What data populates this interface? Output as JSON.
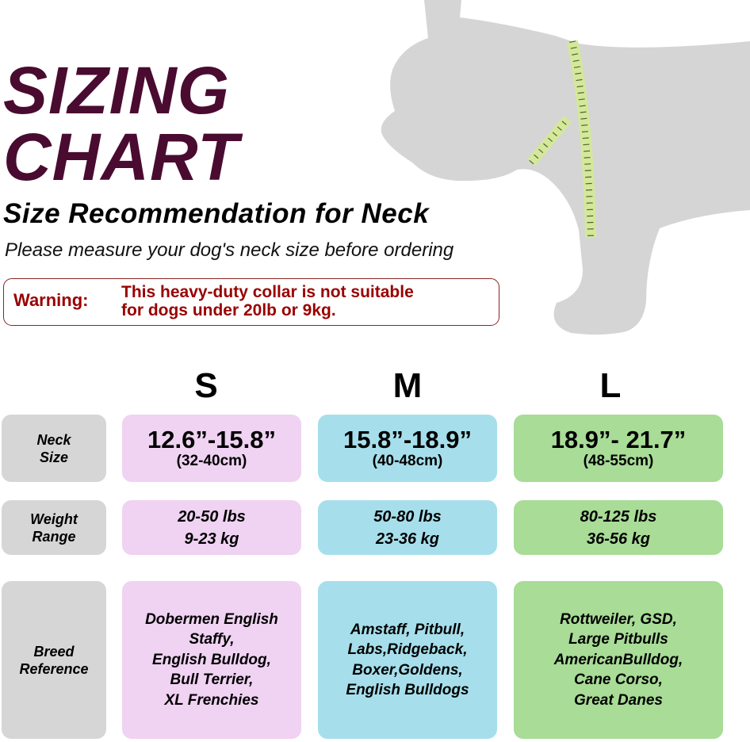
{
  "title": {
    "line1": "SIZING",
    "line2": "CHART"
  },
  "subtitle": "Size Recommendation for Neck",
  "instruction": "Please measure your dog's neck size before ordering",
  "warning": {
    "label": "Warning:",
    "text": "This heavy-duty collar is not suitable\nfor dogs under 20lb or 9kg."
  },
  "illustration": {
    "icon": "dog-silhouette-with-measuring-tape",
    "dog_color": "#d5d5d5",
    "tape_color": "#d4e89a"
  },
  "row_labels": {
    "neck": "Neck\nSize",
    "weight": "Weight\nRange",
    "breed": "Breed\nReference"
  },
  "sizes": [
    {
      "name": "S",
      "color": "#f0d2f2",
      "neck": "12.6”-15.8”",
      "neck_cm": "(32-40cm)",
      "weight_lbs": "20-50 lbs",
      "weight_kg": "9-23 kg",
      "breeds": "Dobermen English\nStaffy,\nEnglish Bulldog,\nBull Terrier,\nXL Frenchies"
    },
    {
      "name": "M",
      "color": "#a6dfeb",
      "neck": "15.8”-18.9”",
      "neck_cm": "(40-48cm)",
      "weight_lbs": "50-80 lbs",
      "weight_kg": "23-36 kg",
      "breeds": "Amstaff, Pitbull,\nLabs,Ridgeback,\nBoxer,Goldens,\nEnglish Bulldogs"
    },
    {
      "name": "L",
      "color": "#a8dc97",
      "neck": "18.9”- 21.7”",
      "neck_cm": "(48-55cm)",
      "weight_lbs": "80-125 lbs",
      "weight_kg": "36-56 kg",
      "breeds": "Rottweiler, GSD,\nLarge Pitbulls\nAmericanBulldog,\nCane Corso,\nGreat Danes"
    }
  ]
}
